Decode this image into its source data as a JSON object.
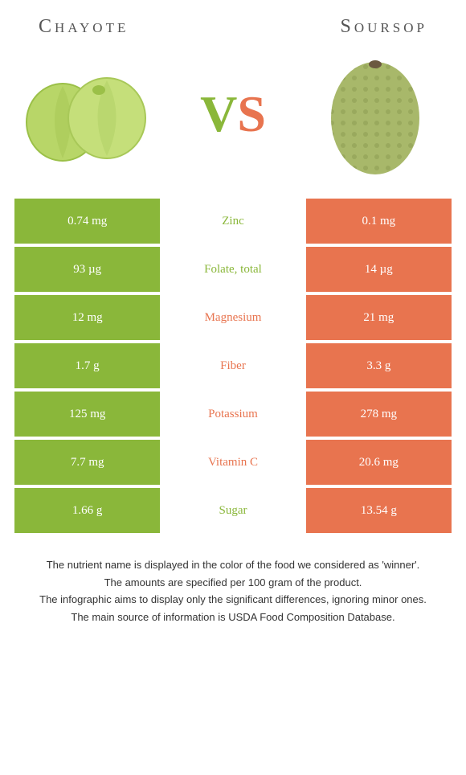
{
  "left": {
    "name": "Chayote",
    "color": "#8ab73a"
  },
  "right": {
    "name": "Soursop",
    "color": "#e8744f"
  },
  "vs": {
    "v": "V",
    "s": "S"
  },
  "rows": [
    {
      "left": "0.74 mg",
      "label": "Zinc",
      "right": "0.1 mg",
      "winner": "left"
    },
    {
      "left": "93 µg",
      "label": "Folate, total",
      "right": "14 µg",
      "winner": "left"
    },
    {
      "left": "12 mg",
      "label": "Magnesium",
      "right": "21 mg",
      "winner": "right"
    },
    {
      "left": "1.7 g",
      "label": "Fiber",
      "right": "3.3 g",
      "winner": "right"
    },
    {
      "left": "125 mg",
      "label": "Potassium",
      "right": "278 mg",
      "winner": "right"
    },
    {
      "left": "7.7 mg",
      "label": "Vitamin C",
      "right": "20.6 mg",
      "winner": "right"
    },
    {
      "left": "1.66 g",
      "label": "Sugar",
      "right": "13.54 g",
      "winner": "left"
    }
  ],
  "footer": [
    "The nutrient name is displayed in the color of the food we considered as 'winner'.",
    "The amounts are specified per 100 gram of the product.",
    "The infographic aims to display only the significant differences, ignoring minor ones.",
    "The main source of information is USDA Food Composition Database."
  ]
}
